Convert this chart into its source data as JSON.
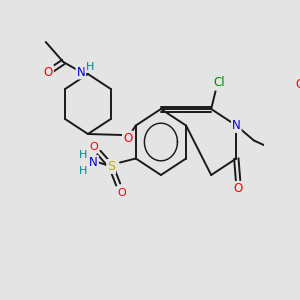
{
  "bg_color": "#e4e4e4",
  "bond_color": "#1a1a1a",
  "bond_width": 1.4,
  "fig_width": 3.0,
  "fig_height": 3.0,
  "dpi": 100,
  "colors": {
    "O": "#ff0000",
    "N": "#0000cc",
    "S": "#ccaa00",
    "Cl": "#008800",
    "H": "#008888",
    "C": "#1a1a1a"
  }
}
